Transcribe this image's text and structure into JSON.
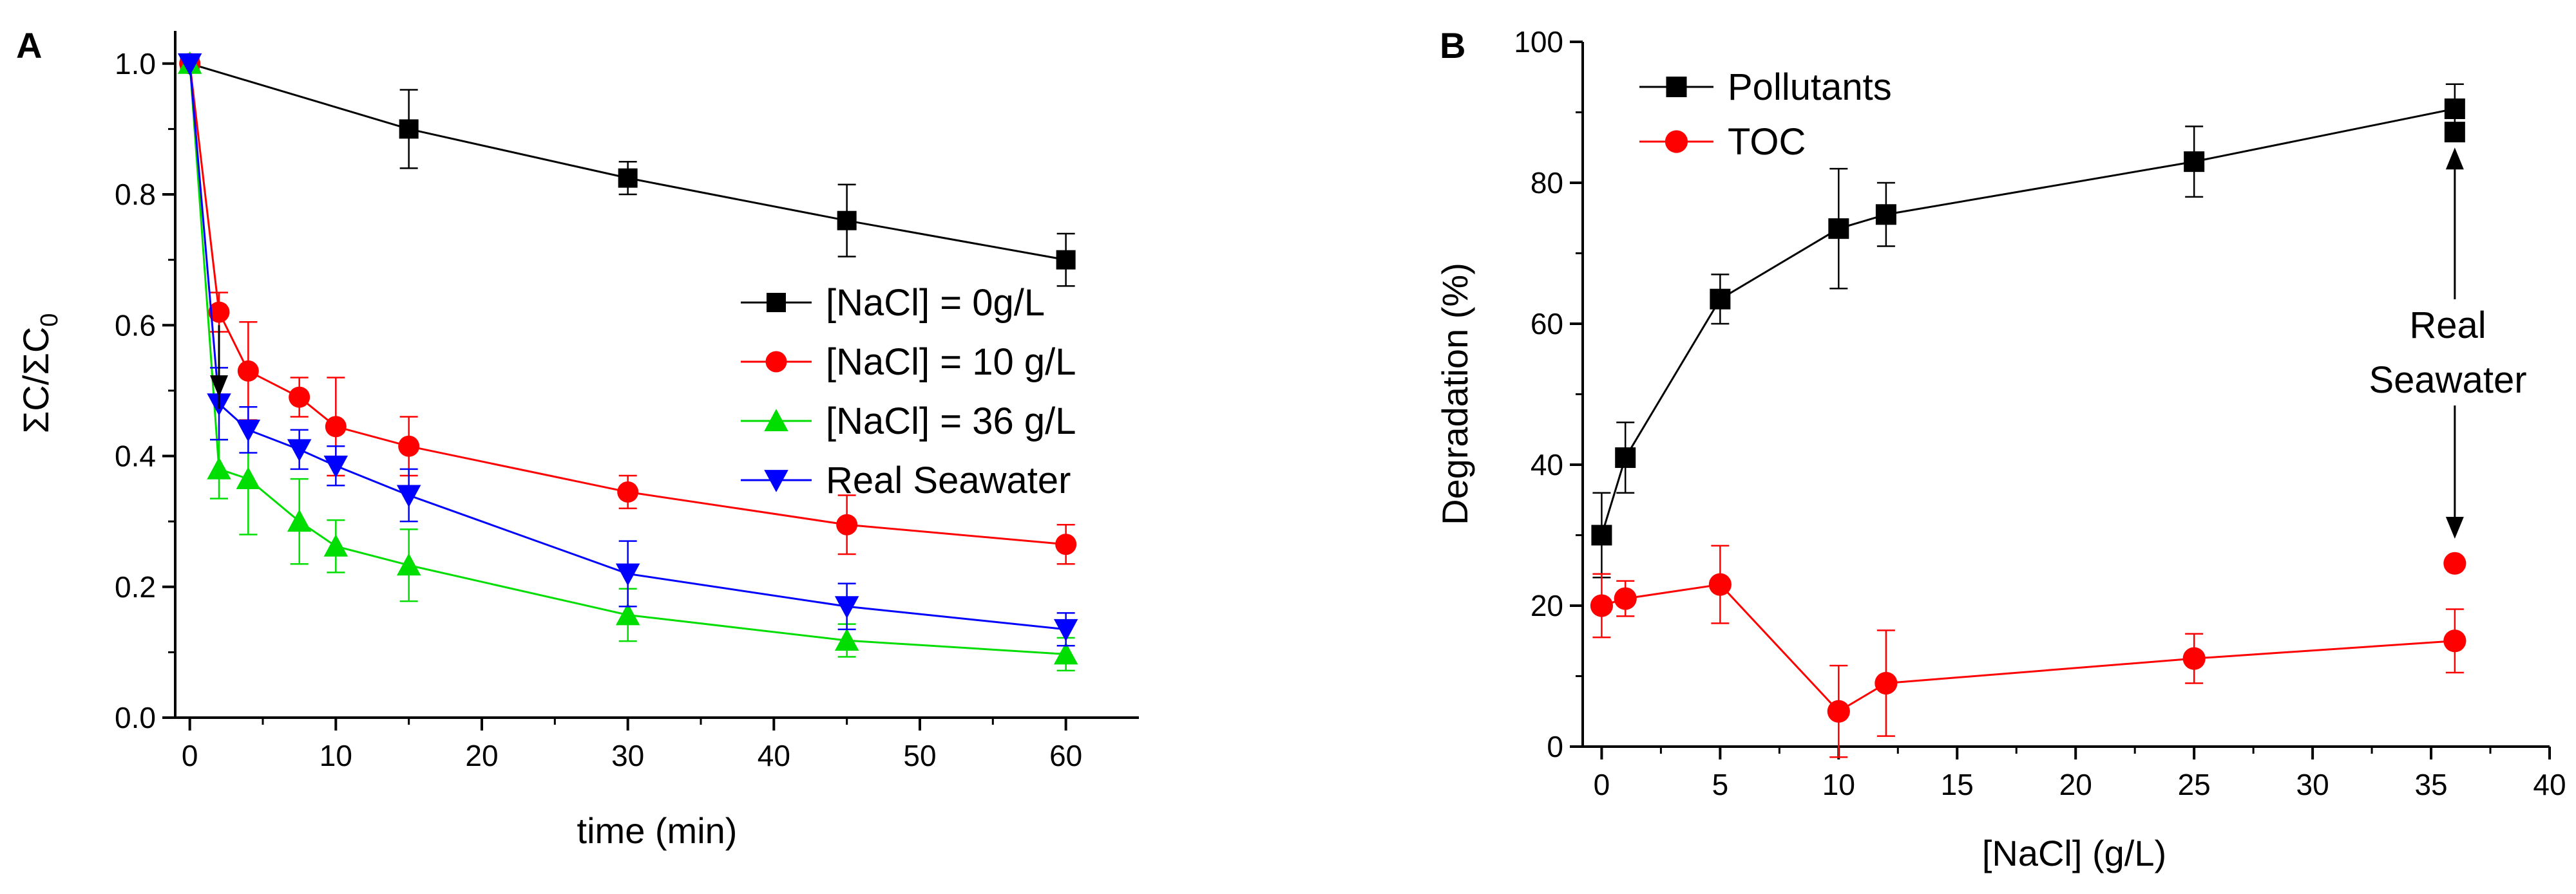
{
  "chart_data": [
    {
      "panel": "A",
      "type": "line",
      "xlabel": "time (min)",
      "ylabel": "ΣC/ΣC0",
      "ylabel_main": "ΣC/ΣC",
      "ylabel_sub": "0",
      "xlim": [
        -1,
        65
      ],
      "ylim": [
        0,
        1.05
      ],
      "xticks": [
        0,
        10,
        20,
        30,
        40,
        50,
        60
      ],
      "yticks": [
        0.0,
        0.2,
        0.4,
        0.6,
        0.8,
        1.0
      ],
      "ytick_labels": [
        "0.0",
        "0.2",
        "0.4",
        "0.6",
        "0.8",
        "1.0"
      ],
      "legend_position": "middle-right",
      "series": [
        {
          "name": "[NaCl] = 0g/L",
          "color": "#000000",
          "marker": "square",
          "x": [
            0,
            15,
            30,
            45,
            60
          ],
          "y": [
            1.0,
            0.9,
            0.825,
            0.76,
            0.7
          ],
          "err": [
            0.0,
            0.06,
            0.025,
            0.055,
            0.04
          ]
        },
        {
          "name": "[NaCl] = 10 g/L",
          "color": "#ff0000",
          "marker": "circle",
          "x": [
            0,
            2,
            4,
            7.5,
            10,
            15,
            30,
            45,
            60
          ],
          "y": [
            1.0,
            0.62,
            0.53,
            0.49,
            0.445,
            0.415,
            0.345,
            0.295,
            0.265
          ],
          "err": [
            0.0,
            0.03,
            0.075,
            0.03,
            0.075,
            0.045,
            0.025,
            0.045,
            0.03
          ]
        },
        {
          "name": "[NaCl] = 36 g/L",
          "color": "#00dd00",
          "marker": "triangle-up",
          "x": [
            0,
            2,
            4,
            7.5,
            10,
            15,
            30,
            45,
            60
          ],
          "y": [
            1.0,
            0.38,
            0.365,
            0.3,
            0.262,
            0.233,
            0.157,
            0.118,
            0.097
          ],
          "err": [
            0.0,
            0.045,
            0.085,
            0.065,
            0.04,
            0.055,
            0.04,
            0.025,
            0.025
          ]
        },
        {
          "name": "Real Seawater",
          "color": "#0000ff",
          "marker": "triangle-down",
          "x": [
            0,
            2,
            4,
            7.5,
            10,
            15,
            30,
            45,
            60
          ],
          "y": [
            1.0,
            0.48,
            0.44,
            0.41,
            0.385,
            0.34,
            0.22,
            0.17,
            0.135
          ],
          "err": [
            0.0,
            0.055,
            0.035,
            0.03,
            0.03,
            0.04,
            0.05,
            0.035,
            0.025
          ]
        }
      ],
      "annotation_arrow": {
        "from": [
          2,
          0.6
        ],
        "to": [
          2,
          0.49
        ]
      }
    },
    {
      "panel": "B",
      "type": "line",
      "xlabel": "[NaCl] (g/L)",
      "ylabel": "Degradation (%)",
      "xlim": [
        -0.8,
        40
      ],
      "ylim": [
        0,
        100
      ],
      "xticks": [
        0,
        5,
        10,
        15,
        20,
        25,
        30,
        35,
        40
      ],
      "yticks": [
        0,
        20,
        40,
        60,
        80,
        100
      ],
      "legend_position": "top-left",
      "series": [
        {
          "name": "Pollutants",
          "color": "#000000",
          "marker": "square",
          "x": [
            0,
            1,
            5,
            10,
            12,
            25,
            36
          ],
          "y": [
            30,
            41,
            63.5,
            73.5,
            75.5,
            83,
            90.5
          ],
          "err": [
            6,
            5,
            3.5,
            8.5,
            4.5,
            5,
            3.5
          ]
        },
        {
          "name": "TOC",
          "color": "#ff0000",
          "marker": "circle",
          "x": [
            0,
            1,
            5,
            10,
            12,
            25,
            36
          ],
          "y": [
            20,
            21,
            23,
            5,
            9,
            12.5,
            15
          ],
          "err": [
            4.5,
            2.5,
            5.5,
            6.5,
            7.5,
            3.5,
            4.5
          ]
        }
      ],
      "seawater_points": [
        {
          "series": "Pollutants",
          "x": 36,
          "y": 87.2,
          "color": "#000000",
          "marker": "square"
        },
        {
          "series": "TOC",
          "x": 36,
          "y": 26,
          "color": "#ff0000",
          "marker": "circle"
        }
      ],
      "annotation": {
        "text_line1": "Real",
        "text_line2": "Seawater",
        "arrow_up_to": [
          36,
          85
        ],
        "arrow_down_to": [
          36,
          29.5
        ]
      }
    }
  ]
}
